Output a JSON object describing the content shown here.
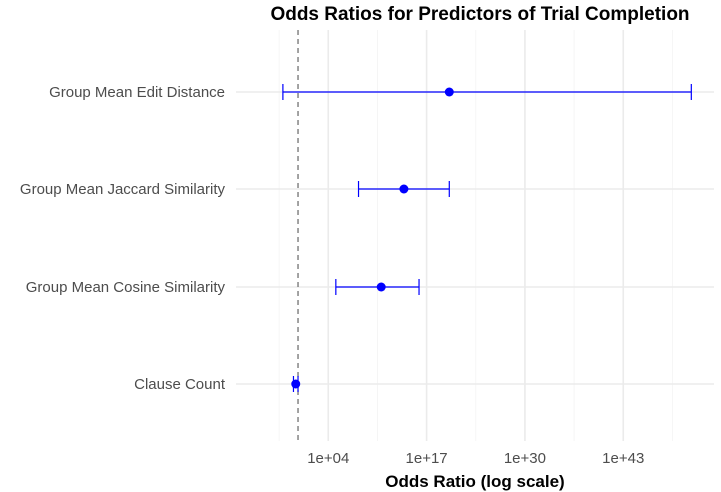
{
  "chart_data": {
    "type": "forest",
    "title": "Odds Ratios for Predictors of Trial Completion",
    "xlabel": "Odds Ratio (log scale)",
    "ylabel": "",
    "x_scale": "log10",
    "x_ticks": [
      "1e+04",
      "1e+17",
      "1e+30",
      "1e+43"
    ],
    "xlim_log10": [
      -8.2,
      55
    ],
    "reference_line": {
      "value": 1,
      "style": "dashed"
    },
    "grid": true,
    "color": "#0000ff",
    "predictors": [
      {
        "name": "Group Mean Edit Distance",
        "odds_ratio": 1e+20,
        "ci_low": 0.01,
        "ci_high": 1e+52
      },
      {
        "name": "Group Mean Jaccard Similarity",
        "odds_ratio": 100000000000000.0,
        "ci_low": 100000000.0,
        "ci_high": 1e+20
      },
      {
        "name": "Group Mean Cosine Similarity",
        "odds_ratio": 100000000000.0,
        "ci_low": 100000.0,
        "ci_high": 1e+16
      },
      {
        "name": "Clause Count",
        "odds_ratio": 0.5,
        "ci_low": 0.25,
        "ci_high": 1.0
      }
    ]
  }
}
